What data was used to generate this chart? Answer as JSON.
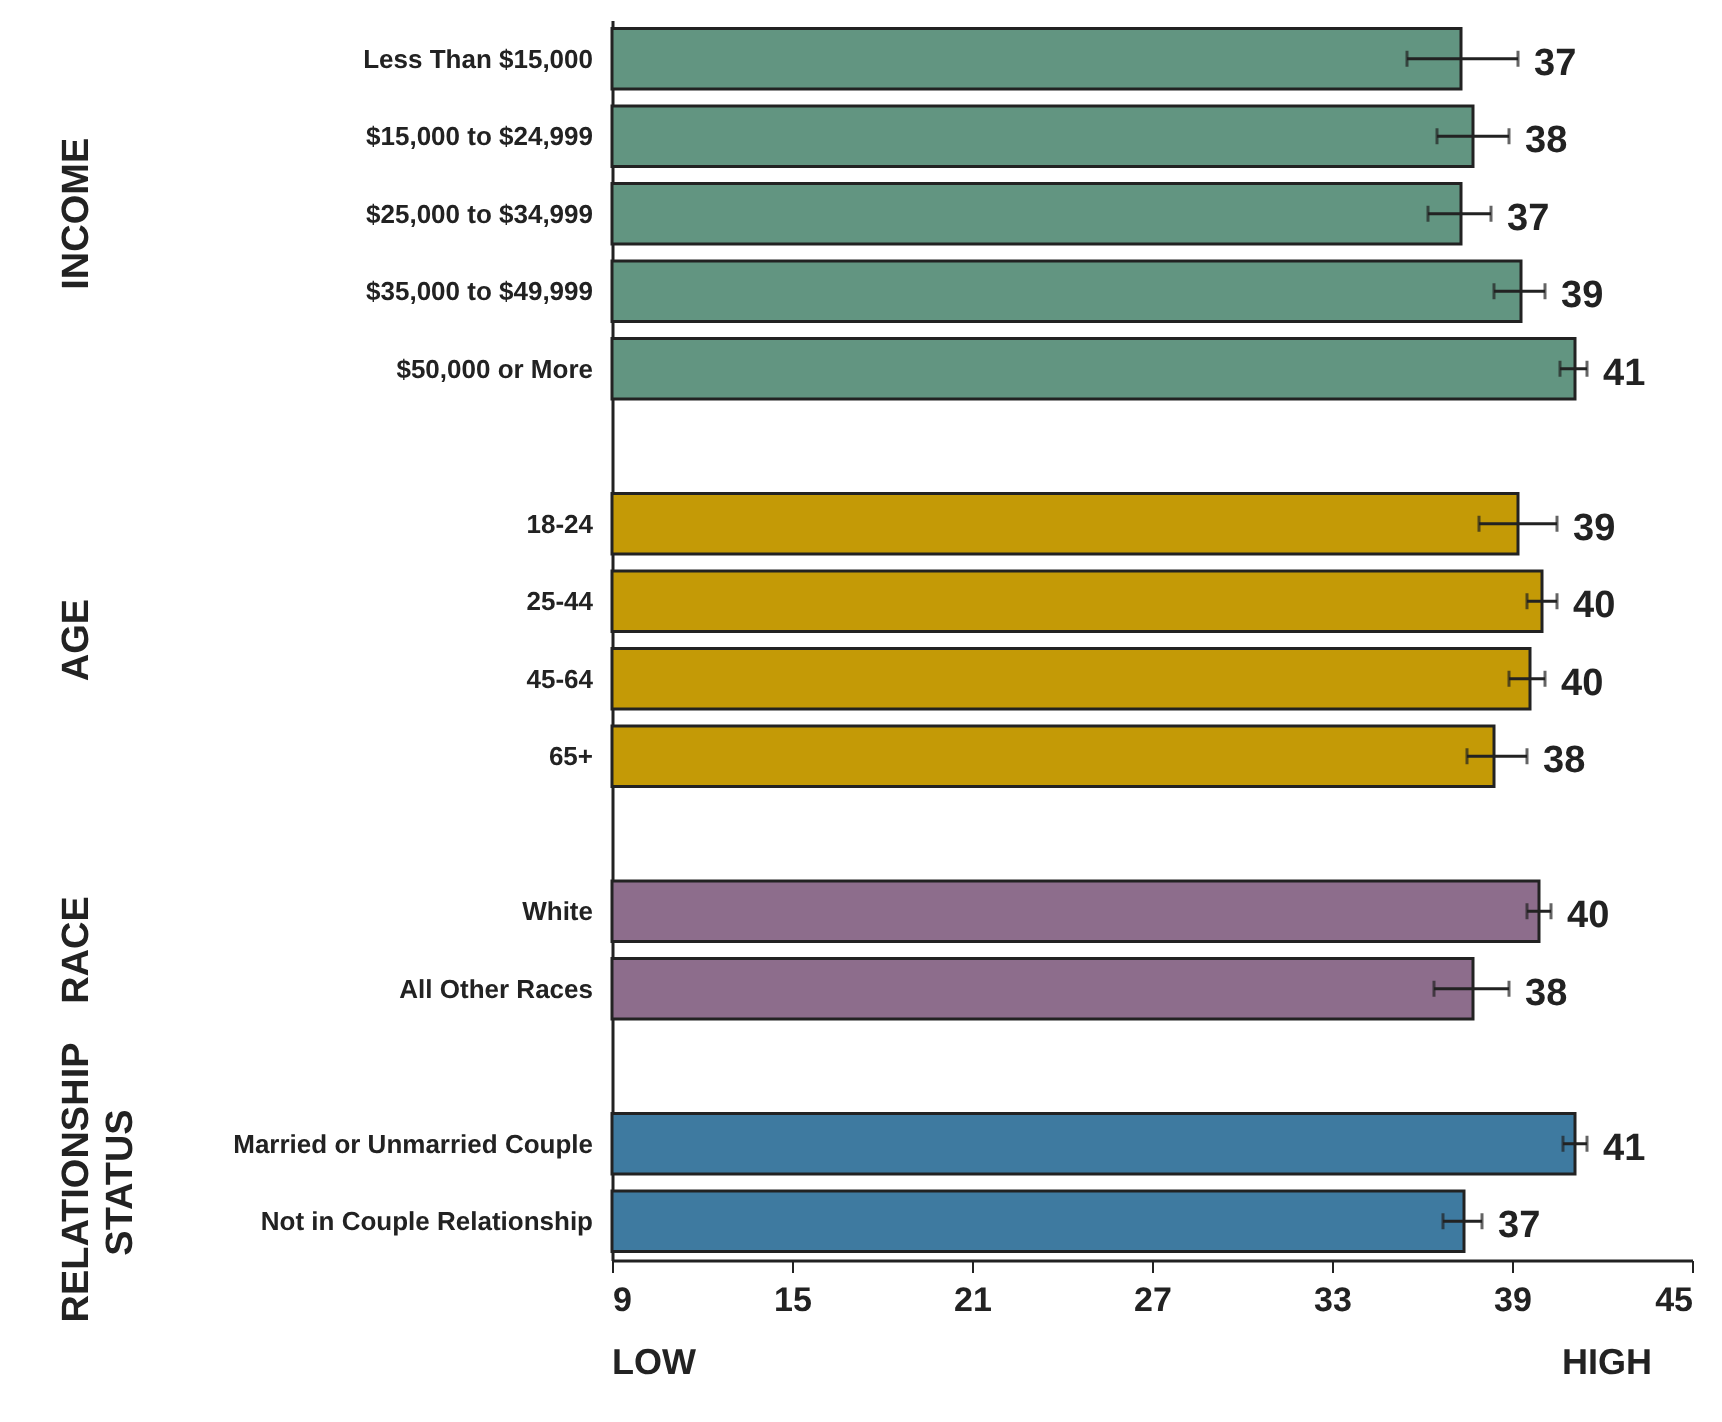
{
  "chart_data": {
    "type": "bar",
    "orientation": "horizontal",
    "categories": [
      "Less Than $15,000",
      "$15,000 to $24,999",
      "$25,000 to $34,999",
      "$35,000 to $49,999",
      "$50,000 or More",
      null,
      "18-24",
      "25-44",
      "45-64",
      "65+",
      null,
      "White",
      "All Other Races",
      null,
      "Married or Unmarried Couple",
      "Not in Couple Relationship"
    ],
    "series": [
      {
        "color": "#629581",
        "values": [
          37.3,
          37.7,
          37.3,
          39.3,
          41.1,
          null,
          null,
          null,
          null,
          null,
          null,
          null,
          null,
          null,
          null,
          null
        ],
        "errors": [
          [
            35.5,
            39.2
          ],
          [
            36.5,
            38.9
          ],
          [
            36.2,
            38.3
          ],
          [
            38.4,
            40.1
          ],
          [
            40.6,
            41.5
          ],
          null,
          null,
          null,
          null,
          null,
          null,
          null,
          null,
          null,
          null,
          null
        ],
        "value_labels": [
          "37",
          "38",
          "37",
          "39",
          "41",
          null,
          null,
          null,
          null,
          null,
          null,
          null,
          null,
          null,
          null,
          null
        ]
      },
      {
        "color": "#c49a06",
        "values": [
          null,
          null,
          null,
          null,
          null,
          null,
          39.2,
          40.0,
          39.6,
          38.4,
          null,
          null,
          null,
          null,
          null,
          null
        ],
        "errors": [
          null,
          null,
          null,
          null,
          null,
          null,
          [
            37.9,
            40.5
          ],
          [
            39.5,
            40.5
          ],
          [
            38.9,
            40.1
          ],
          [
            37.5,
            39.5
          ],
          null,
          null,
          null,
          null,
          null,
          null
        ],
        "value_labels": [
          null,
          null,
          null,
          null,
          null,
          null,
          "39",
          "40",
          "40",
          "38",
          null,
          null,
          null,
          null,
          null,
          null
        ]
      },
      {
        "color": "#8d6d8c",
        "values": [
          null,
          null,
          null,
          null,
          null,
          null,
          null,
          null,
          null,
          null,
          null,
          39.9,
          37.7,
          null,
          null,
          null
        ],
        "errors": [
          null,
          null,
          null,
          null,
          null,
          null,
          null,
          null,
          null,
          null,
          null,
          [
            39.5,
            40.3
          ],
          [
            36.4,
            38.9
          ],
          null,
          null,
          null
        ],
        "value_labels": [
          null,
          null,
          null,
          null,
          null,
          null,
          null,
          null,
          null,
          null,
          null,
          "40",
          "38",
          null,
          null,
          null
        ]
      },
      {
        "color": "#3e7aa0",
        "values": [
          null,
          null,
          null,
          null,
          null,
          null,
          null,
          null,
          null,
          null,
          null,
          null,
          null,
          null,
          41.1,
          37.4
        ],
        "errors": [
          null,
          null,
          null,
          null,
          null,
          null,
          null,
          null,
          null,
          null,
          null,
          null,
          null,
          null,
          [
            40.7,
            41.5
          ],
          [
            36.7,
            38.0
          ]
        ],
        "value_labels": [
          null,
          null,
          null,
          null,
          null,
          null,
          null,
          null,
          null,
          null,
          null,
          null,
          null,
          null,
          "41",
          "37"
        ]
      }
    ],
    "xlim": [
      9,
      45
    ],
    "xticks": [
      9,
      15,
      21,
      27,
      33,
      39,
      45
    ],
    "annotations": [
      "INCOME",
      "AGE",
      "RACE",
      "RELATIONSHIP STATUS",
      "LOW",
      "HIGH"
    ]
  }
}
